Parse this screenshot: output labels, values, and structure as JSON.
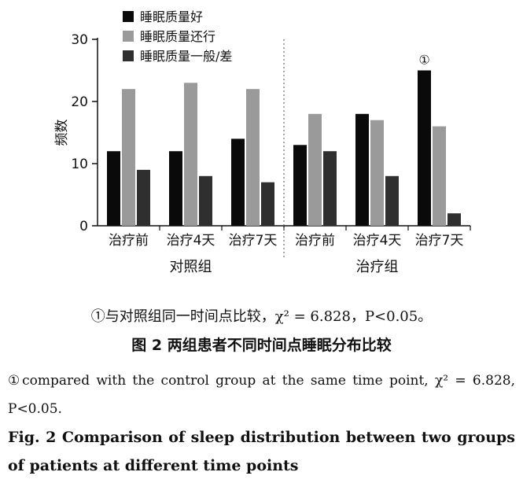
{
  "chart_data": {
    "type": "bar",
    "ylabel": "频数",
    "ylim": [
      0,
      30
    ],
    "yticks": [
      "0",
      "10",
      "20",
      "30"
    ],
    "categories": [
      "治疗前",
      "治疗4天",
      "治疗7天",
      "治疗前",
      "治疗4天",
      "治疗7天"
    ],
    "groups": [
      {
        "name": "对照组",
        "categories": [
          "治疗前",
          "治疗4天",
          "治疗7天"
        ]
      },
      {
        "name": "治疗组",
        "categories": [
          "治疗前",
          "治疗4天",
          "治疗7天"
        ]
      }
    ],
    "series": [
      {
        "name": "睡眠质量好",
        "color": "#0a0a0a",
        "values": [
          12,
          12,
          14,
          13,
          18,
          25
        ]
      },
      {
        "name": "睡眠质量还行",
        "color": "#9a9a9a",
        "values": [
          22,
          23,
          22,
          18,
          17,
          16
        ]
      },
      {
        "name": "睡眠质量一般/差",
        "color": "#2f2f2f",
        "values": [
          9,
          8,
          7,
          12,
          8,
          2
        ]
      }
    ],
    "annotations": [
      {
        "text": "①",
        "category_index": 5,
        "series_index": 0
      }
    ],
    "legend_position": "top-left",
    "grid": false
  },
  "captions": {
    "note_cn": "①与对照组同一时间点比较，χ² = 6.828，P<0.05。",
    "title_cn": "图 2   两组患者不同时间点睡眠分布比较",
    "note_en": "①compared with the control group at the same time point, χ² = 6.828, P<0.05.",
    "title_en": "Fig. 2   Comparison of sleep distribution between two groups of patients at different time points"
  }
}
